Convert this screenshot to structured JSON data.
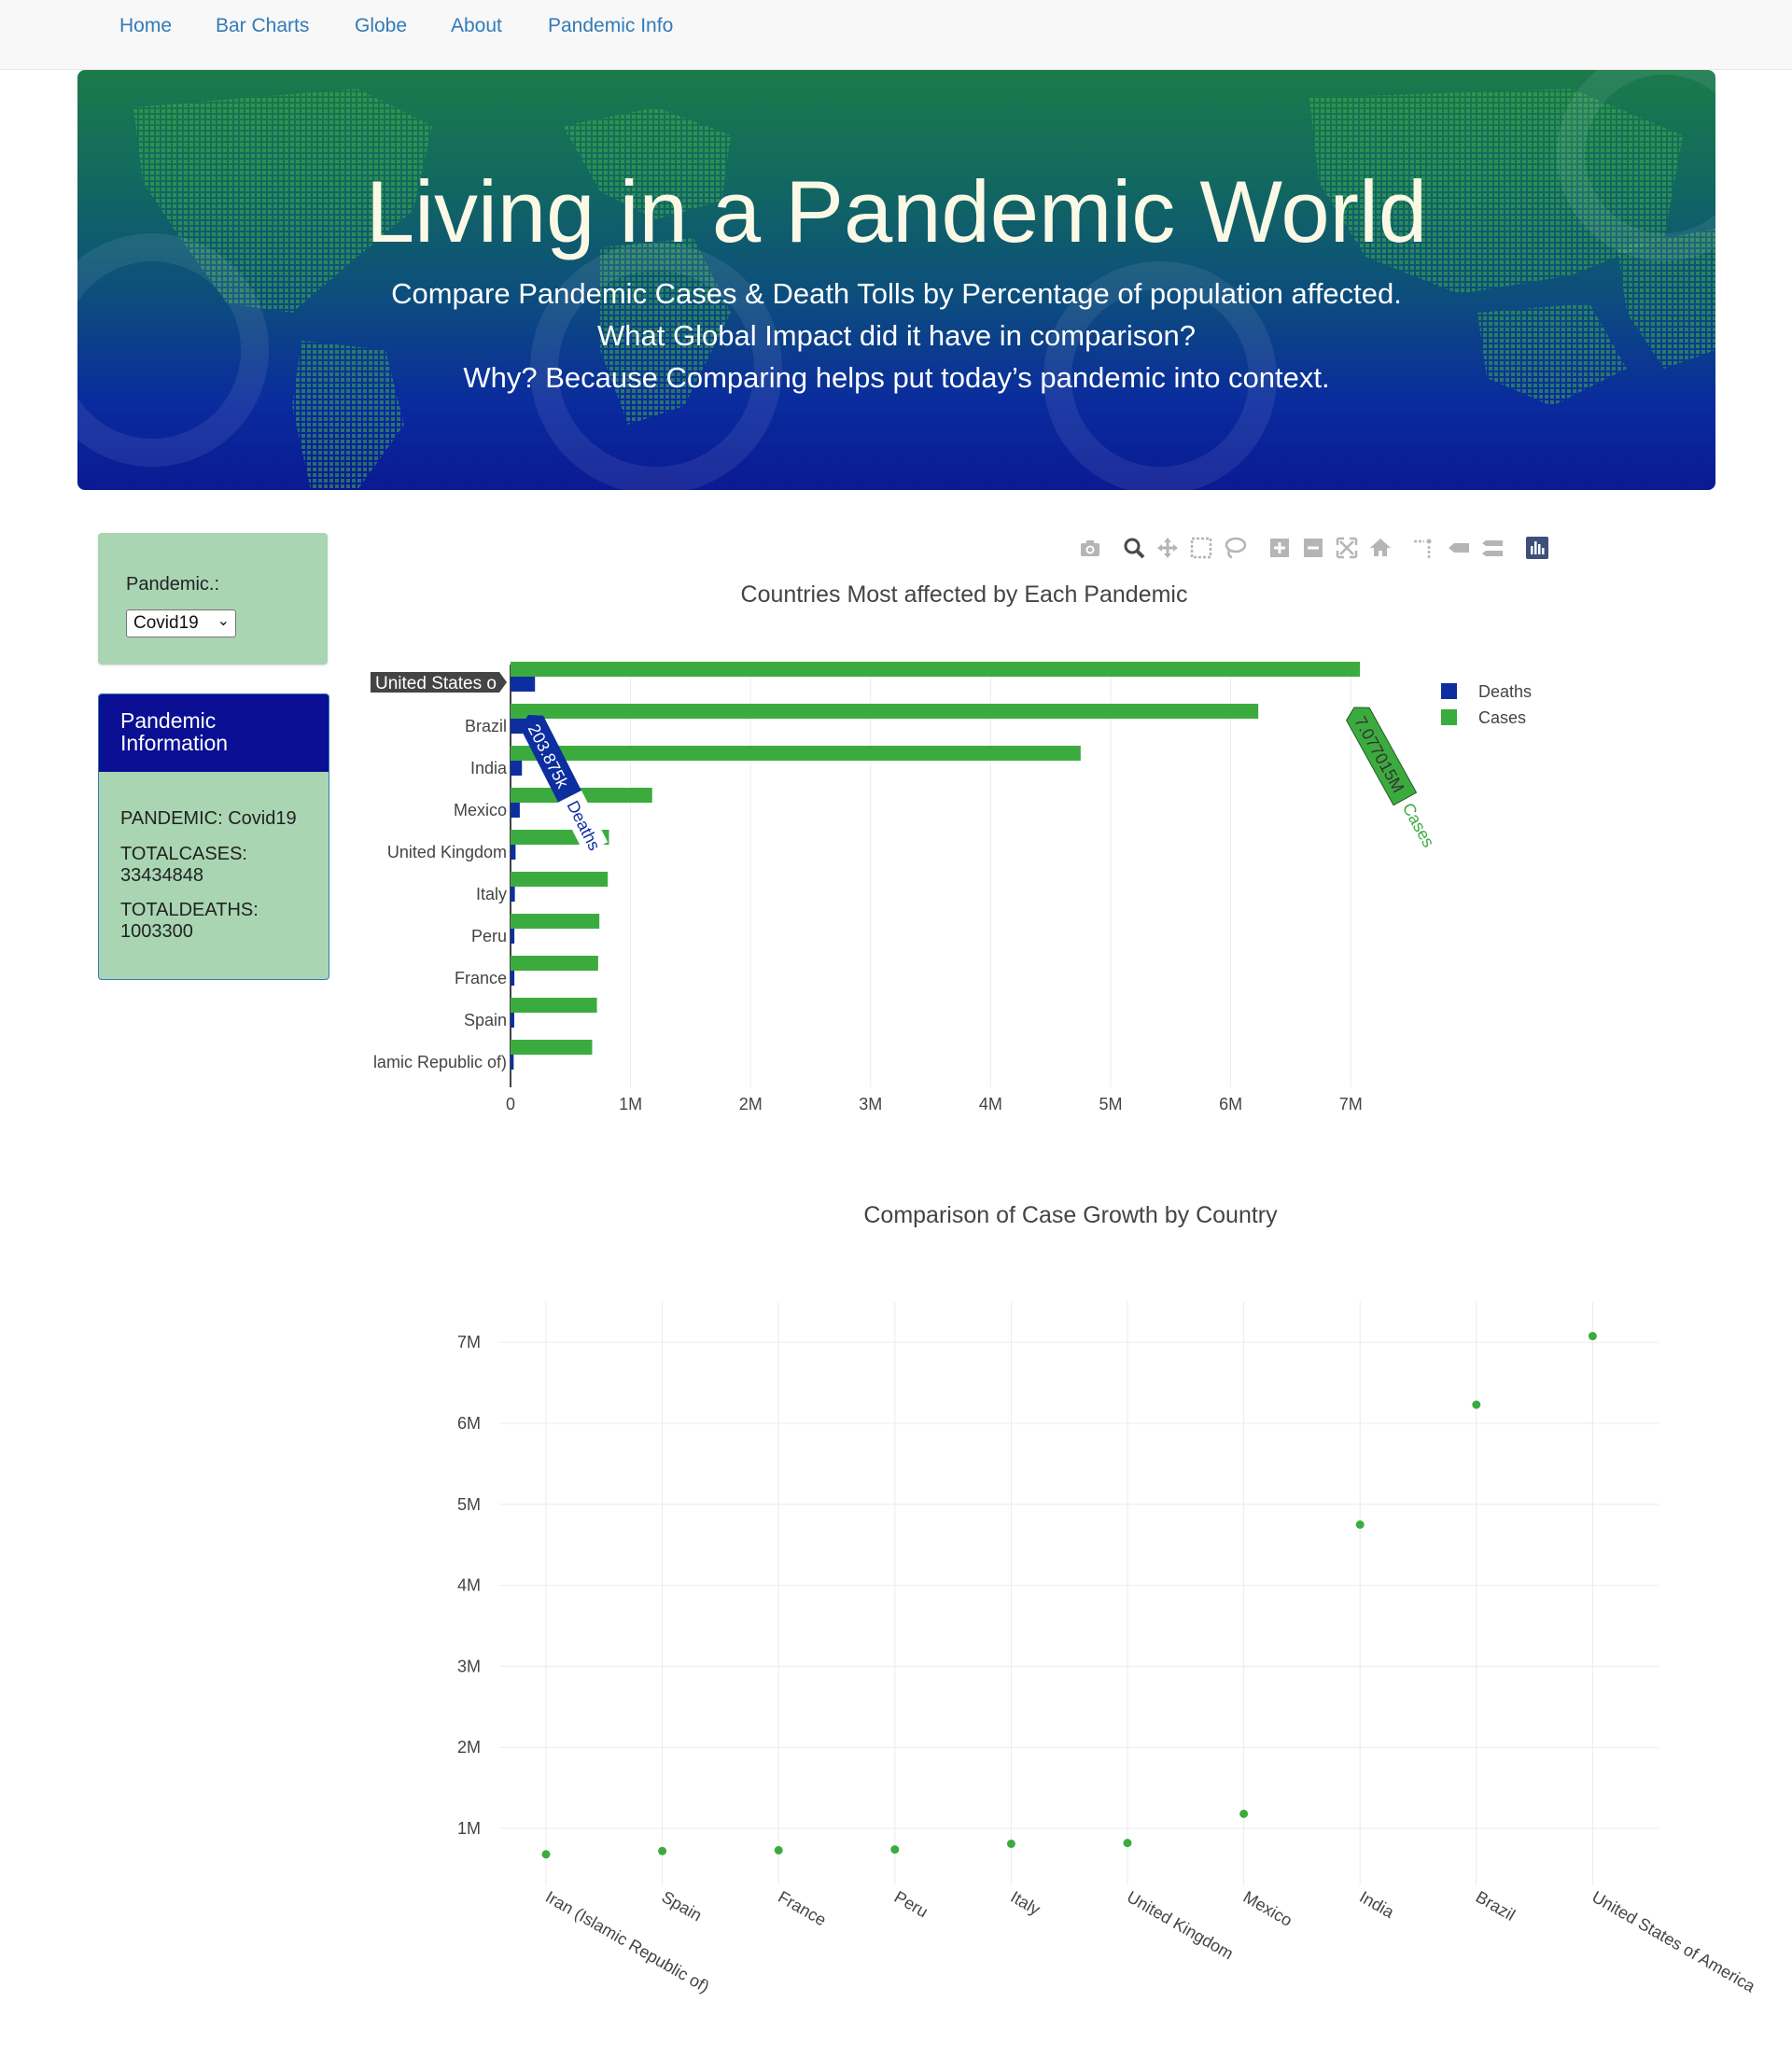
{
  "nav": {
    "items": [
      "Home",
      "Bar Charts",
      "Globe",
      "About",
      "Pandemic Info"
    ]
  },
  "hero": {
    "title": "Living in a Pandemic World",
    "subtitle_lines": [
      "Compare Pandemic Cases & Death Tolls by Percentage of population affected.",
      "What Global Impact did it have in comparison?",
      "Why? Because Comparing helps put today’s pandemic into context."
    ]
  },
  "selector": {
    "label": "Pandemic.:",
    "selected": "Covid19"
  },
  "info": {
    "heading": "Pandemic Information",
    "pandemic": "PANDEMIC: Covid19",
    "totalcases_label": "TOTALCASES:",
    "totalcases_value": "33434848",
    "totaldeaths_label": "TOTALDEATHS:",
    "totaldeaths_value": "1003300"
  },
  "toolbar": {
    "icons": [
      "camera-icon",
      "zoom-icon",
      "pan-icon",
      "box-select-icon",
      "lasso-select-icon",
      "zoom-in-icon",
      "zoom-out-icon",
      "autoscale-icon",
      "reset-axes-icon",
      "spike-lines-icon",
      "hover-closest-icon",
      "hover-compare-icon",
      "plotly-logo-icon"
    ]
  },
  "colors": {
    "cases": "#3cab3f",
    "deaths": "#0d2e9f",
    "accent": "#337ab7",
    "panel": "#a9d5b3",
    "info_header": "#0a0f93"
  },
  "chart_data": [
    {
      "type": "bar",
      "orientation": "horizontal",
      "title": "Countries Most affected by Each Pandemic",
      "categories": [
        "United States of America",
        "Brazil",
        "India",
        "Mexico",
        "United Kingdom",
        "Italy",
        "Peru",
        "France",
        "Spain",
        "Iran (Islamic Republic of)"
      ],
      "category_labels": [
        "United States o",
        "Brazil",
        "India",
        "Mexico",
        "United Kingdom",
        "Italy",
        "Peru",
        "France",
        "Spain",
        "lamic Republic of)"
      ],
      "series": [
        {
          "name": "Deaths",
          "color": "#0d2e9f",
          "values": [
            203875,
            141000,
            95000,
            77000,
            42000,
            36000,
            32000,
            32000,
            31000,
            26000
          ]
        },
        {
          "name": "Cases",
          "color": "#3cab3f",
          "values": [
            7077015,
            6230000,
            4750000,
            1180000,
            820000,
            810000,
            740000,
            730000,
            720000,
            680000
          ]
        }
      ],
      "xlim": [
        0,
        7500000
      ],
      "xticks": [
        0,
        1000000,
        2000000,
        3000000,
        4000000,
        5000000,
        6000000,
        7000000
      ],
      "xtick_labels": [
        "0",
        "1M",
        "2M",
        "3M",
        "4M",
        "5M",
        "6M",
        "7M"
      ],
      "legend": [
        "Deaths",
        "Cases"
      ],
      "legend_position": "top-right",
      "hover_labels": {
        "category": "United States o",
        "deaths_value": "203.875k",
        "deaths_name": "Deaths",
        "cases_value": "7.077015M",
        "cases_name": "Cases"
      },
      "grid": true
    },
    {
      "type": "scatter",
      "title": "Comparison of Case Growth by Country",
      "x": [
        "Iran (Islamic Republic of)",
        "Spain",
        "France",
        "Peru",
        "Italy",
        "United Kingdom",
        "Mexico",
        "India",
        "Brazil",
        "United States of America"
      ],
      "y": [
        680000,
        720000,
        730000,
        740000,
        810000,
        820000,
        1180000,
        4750000,
        6230000,
        7077015
      ],
      "color": "#3cab3f",
      "ylim": [
        0,
        7500000
      ],
      "yticks": [
        1000000,
        2000000,
        3000000,
        4000000,
        5000000,
        6000000,
        7000000
      ],
      "ytick_labels": [
        "1M",
        "2M",
        "3M",
        "4M",
        "5M",
        "6M",
        "7M"
      ],
      "grid": true
    }
  ]
}
